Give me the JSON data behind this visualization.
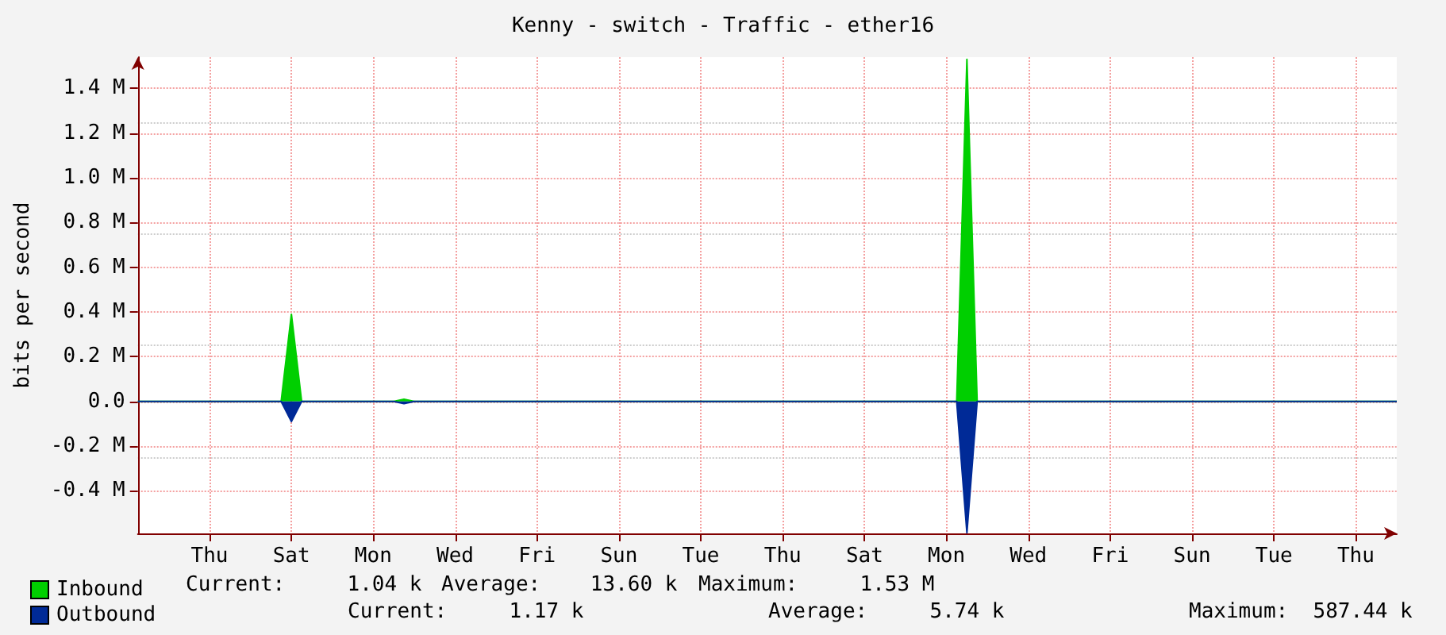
{
  "chart_data": {
    "type": "area",
    "title": "Kenny - switch - Traffic - ether16",
    "ylabel": "bits per second",
    "categories": [
      null,
      null,
      null,
      null,
      null,
      null,
      null,
      "Thu",
      null,
      null,
      null,
      null,
      null,
      null,
      null,
      "Sat",
      null,
      null,
      null,
      null,
      null,
      null,
      null,
      "Mon",
      null,
      null,
      null,
      null,
      null,
      null,
      null,
      "Wed",
      null,
      null,
      null,
      null,
      null,
      null,
      null,
      "Fri",
      null,
      null,
      null,
      null,
      null,
      null,
      null,
      "Sun",
      null,
      null,
      null,
      null,
      null,
      null,
      null,
      "Tue",
      null,
      null,
      null,
      null,
      null,
      null,
      null,
      "Thu",
      null,
      null,
      null,
      null,
      null,
      null,
      null,
      "Sat",
      null,
      null,
      null,
      null,
      null,
      null,
      null,
      "Mon",
      null,
      null,
      null,
      null,
      null,
      null,
      null,
      "Wed",
      null,
      null,
      null,
      null,
      null,
      null,
      null,
      "Fri",
      null,
      null,
      null,
      null,
      null,
      null,
      null,
      "Sun",
      null,
      null,
      null,
      null,
      null,
      null,
      null,
      "Tue",
      null,
      null,
      null,
      null,
      null,
      null,
      null,
      "Thu",
      null,
      null,
      null,
      null
    ],
    "series": [
      {
        "name": "Inbound",
        "color": "#00cf00",
        "values": [
          0,
          0,
          0,
          0,
          0,
          0,
          0,
          0,
          0,
          0,
          0,
          0,
          0,
          0,
          0,
          0.39,
          0,
          0,
          0,
          0,
          0,
          0,
          0,
          0,
          0,
          0,
          0.01,
          0,
          0,
          0,
          0,
          0,
          0,
          0,
          0,
          0,
          0,
          0,
          0,
          0,
          0,
          0,
          0,
          0,
          0,
          0,
          0,
          0,
          0,
          0,
          0,
          0,
          0,
          0,
          0,
          0,
          0,
          0,
          0,
          0,
          0,
          0,
          0,
          0,
          0,
          0,
          0,
          0,
          0,
          0,
          0,
          0,
          0,
          0,
          0,
          0,
          0,
          0,
          0,
          0,
          0,
          1.53,
          0,
          0,
          0,
          0,
          0,
          0,
          0,
          0,
          0,
          0,
          0,
          0,
          0,
          0,
          0,
          0,
          0,
          0,
          0,
          0,
          0,
          0,
          0,
          0,
          0,
          0,
          0,
          0,
          0,
          0,
          0,
          0,
          0,
          0,
          0,
          0,
          0,
          0,
          0,
          0,
          0,
          0
        ]
      },
      {
        "name": "Outbound",
        "color": "#002a97",
        "values": [
          0,
          0,
          0,
          0,
          0,
          0,
          0,
          0,
          0,
          0,
          0,
          0,
          0,
          0,
          0,
          -0.09,
          0,
          0,
          0,
          0,
          0,
          0,
          0,
          0,
          0,
          0,
          -0.01,
          0,
          0,
          0,
          0,
          0,
          0,
          0,
          0,
          0,
          0,
          0,
          0,
          0,
          0,
          0,
          0,
          0,
          0,
          0,
          0,
          0,
          0,
          0,
          0,
          0,
          0,
          0,
          0,
          0,
          0,
          0,
          0,
          0,
          0,
          0,
          0,
          0,
          0,
          0,
          0,
          0,
          0,
          0,
          0,
          0,
          0,
          0,
          0,
          0,
          0,
          0,
          0,
          0,
          0,
          -0.587,
          0,
          0,
          0,
          0,
          0,
          0,
          0,
          0,
          0,
          0,
          0,
          0,
          0,
          0,
          0,
          0,
          0,
          0,
          0,
          0,
          0,
          0,
          0,
          0,
          0,
          0,
          0,
          0,
          0,
          0,
          0,
          0,
          0,
          0,
          0,
          0,
          0,
          0,
          0,
          0,
          0,
          0
        ]
      }
    ],
    "ylim": [
      -0.59,
      1.54
    ],
    "yticks": [
      {
        "value": -0.4,
        "label": "-0.4 M"
      },
      {
        "value": -0.2,
        "label": "-0.2 M"
      },
      {
        "value": 0,
        "label": "0.0"
      },
      {
        "value": 0.2,
        "label": "0.2 M"
      },
      {
        "value": 0.4,
        "label": "0.4 M"
      },
      {
        "value": 0.6,
        "label": "0.6 M"
      },
      {
        "value": 0.8,
        "label": "0.8 M"
      },
      {
        "value": 1.0,
        "label": "1.0 M"
      },
      {
        "value": 1.2,
        "label": "1.2 M"
      },
      {
        "value": 1.4,
        "label": "1.4 M"
      }
    ],
    "grid": true,
    "legend": "bottom left",
    "annotations": [
      "Current:     1.04 k",
      "Average:    13.60 k",
      "Maximum:     1.53 M",
      "Current:     1.17 k",
      "Average:     5.74 k",
      "Maximum:  587.44 k"
    ]
  }
}
